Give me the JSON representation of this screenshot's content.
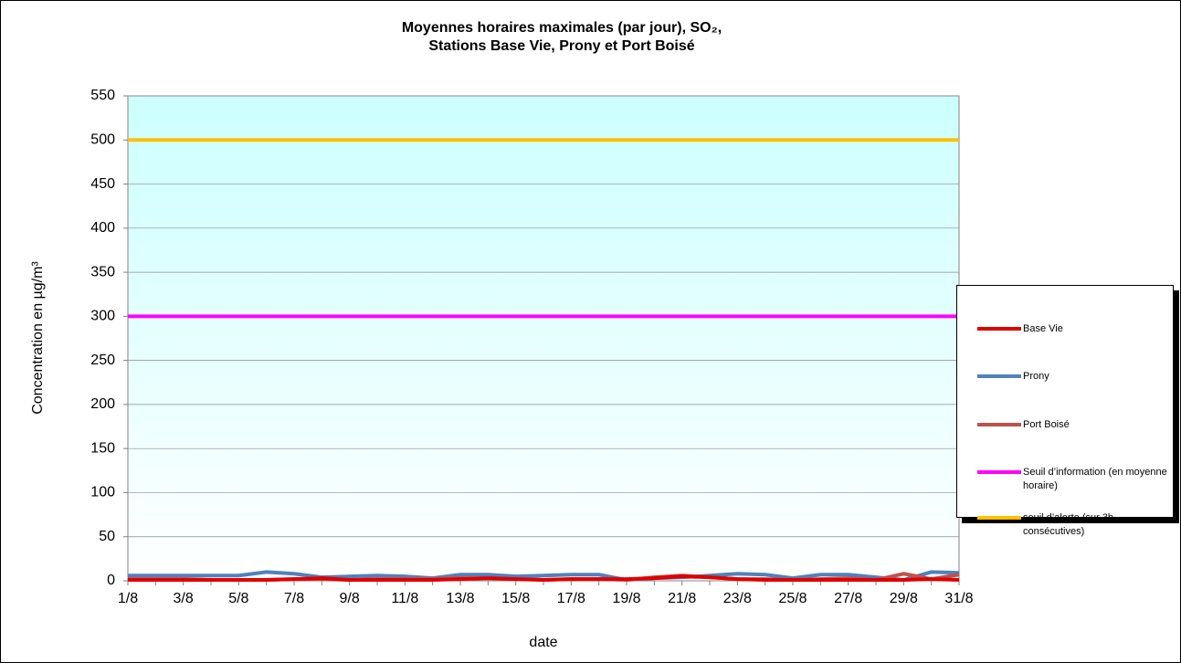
{
  "chart_data": {
    "type": "line",
    "title": [
      "Moyennes horaires maximales (par jour), SO₂,",
      "Stations Base Vie, Prony et Port Boisé"
    ],
    "ylabel": "Concentration en µg/m³",
    "xlabel": "date",
    "categories": [
      "1/8",
      null,
      "3/8",
      null,
      "5/8",
      null,
      "7/8",
      null,
      "9/8",
      null,
      "11/8",
      null,
      "13/8",
      null,
      "15/8",
      null,
      "17/8",
      null,
      "19/8",
      null,
      "21/8",
      null,
      "23/8",
      null,
      "25/8",
      null,
      "27/8",
      null,
      "29/8",
      null,
      "31/8"
    ],
    "series": [
      {
        "name": "Base Vie",
        "color": "#e00000",
        "values": [
          1,
          1,
          1,
          1,
          1,
          1,
          2,
          3,
          1,
          1,
          1,
          1,
          2,
          3,
          2,
          1,
          2,
          2,
          2,
          3,
          5,
          4,
          2,
          1,
          1,
          1,
          1,
          1,
          1,
          2,
          1
        ]
      },
      {
        "name": "Prony",
        "color": "#4f81bd",
        "values": [
          6,
          6,
          6,
          6,
          6,
          10,
          8,
          4,
          5,
          6,
          5,
          3,
          7,
          7,
          5,
          6,
          7,
          7,
          1,
          3,
          4,
          6,
          8,
          7,
          3,
          7,
          7,
          4,
          1,
          10,
          9
        ]
      },
      {
        "name": "Port Boisé",
        "color": "#c0504d",
        "values": [
          2,
          2,
          2,
          1,
          1,
          1,
          2,
          2,
          1,
          2,
          2,
          2,
          3,
          3,
          2,
          1,
          2,
          2,
          1,
          4,
          6,
          4,
          2,
          2,
          1,
          2,
          3,
          1,
          8,
          2,
          7
        ]
      },
      {
        "name": "Seuil d’information (en moyenne horaire)",
        "color": "#ff00ff",
        "values": [
          300,
          300,
          300,
          300,
          300,
          300,
          300,
          300,
          300,
          300,
          300,
          300,
          300,
          300,
          300,
          300,
          300,
          300,
          300,
          300,
          300,
          300,
          300,
          300,
          300,
          300,
          300,
          300,
          300,
          300,
          300
        ]
      },
      {
        "name": "seuil d’alerte (sur 3h consécutives)",
        "color": "#ffc000",
        "values": [
          500,
          500,
          500,
          500,
          500,
          500,
          500,
          500,
          500,
          500,
          500,
          500,
          500,
          500,
          500,
          500,
          500,
          500,
          500,
          500,
          500,
          500,
          500,
          500,
          500,
          500,
          500,
          500,
          500,
          500,
          500
        ]
      }
    ],
    "ylim": [
      0,
      550
    ],
    "yticks": [
      0,
      50,
      100,
      150,
      200,
      250,
      300,
      350,
      400,
      450,
      500,
      550
    ],
    "grid": true,
    "legend": "right"
  }
}
